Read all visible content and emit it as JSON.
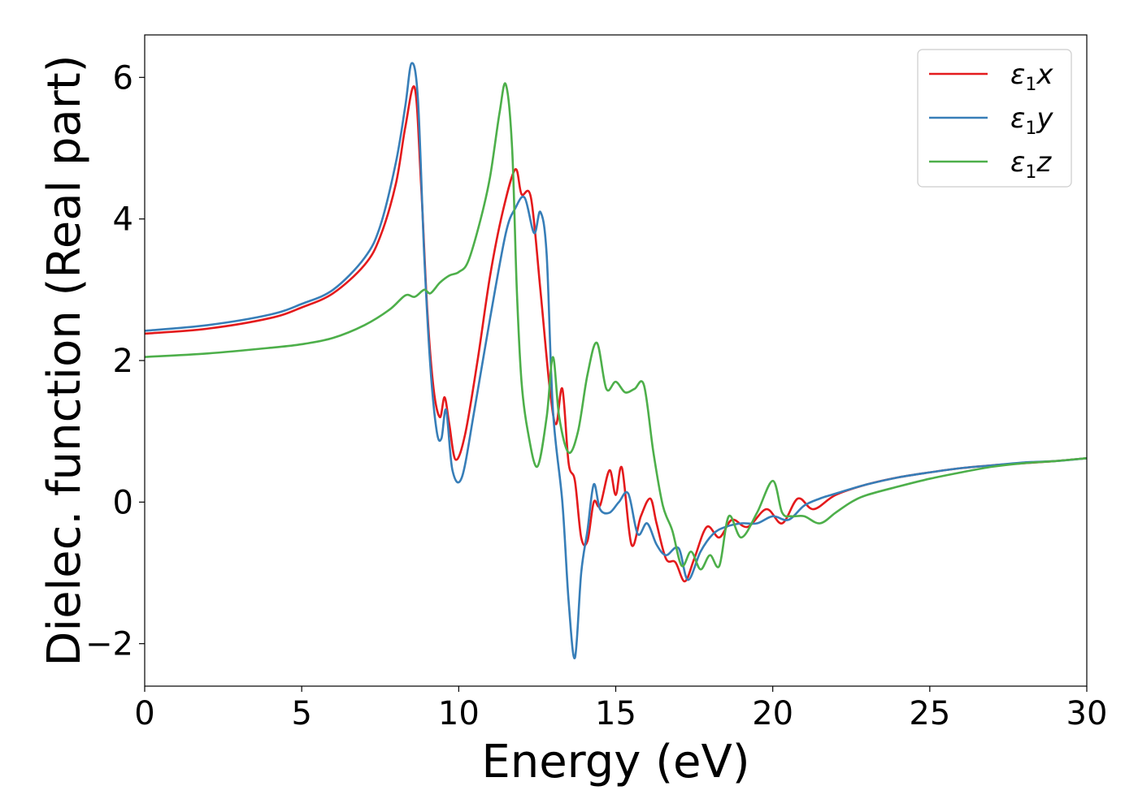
{
  "chart_data": {
    "type": "line",
    "title": "",
    "xlabel": "Energy (eV)",
    "ylabel": "Dielec. function (Real part)",
    "xlim": [
      0,
      30
    ],
    "ylim": [
      -2.6,
      6.6
    ],
    "xticks": [
      0,
      5,
      10,
      15,
      20,
      25,
      30
    ],
    "xtick_labels": [
      "0",
      "5",
      "10",
      "15",
      "20",
      "25",
      "30"
    ],
    "yticks": [
      -2,
      0,
      2,
      4,
      6
    ],
    "ytick_labels": [
      "−2",
      "0",
      "2",
      "4",
      "6"
    ],
    "grid": false,
    "legend_position": "top-right",
    "series": [
      {
        "name": "ε1x",
        "legend_main": "ε",
        "legend_sub": "1",
        "legend_var": "x",
        "color": "#e41a1c",
        "x": [
          0,
          2,
          4,
          5,
          6,
          7,
          7.5,
          8,
          8.3,
          8.6,
          8.8,
          9.0,
          9.2,
          9.4,
          9.55,
          9.7,
          9.9,
          10.2,
          10.6,
          11.0,
          11.4,
          11.8,
          12.0,
          12.3,
          12.6,
          12.9,
          13.1,
          13.3,
          13.5,
          13.7,
          13.9,
          14.1,
          14.3,
          14.5,
          14.8,
          15.0,
          15.2,
          15.5,
          15.8,
          16.1,
          16.3,
          16.6,
          16.9,
          17.2,
          17.5,
          17.9,
          18.3,
          18.7,
          19.2,
          19.8,
          20.3,
          20.8,
          21.3,
          22,
          23,
          24,
          25,
          26,
          27,
          28,
          29,
          30
        ],
        "y": [
          2.38,
          2.45,
          2.6,
          2.75,
          2.95,
          3.35,
          3.75,
          4.5,
          5.3,
          5.85,
          4.5,
          2.7,
          1.6,
          1.2,
          1.48,
          1.1,
          0.6,
          0.95,
          2.0,
          3.2,
          4.1,
          4.7,
          4.35,
          4.3,
          3.0,
          1.6,
          1.1,
          1.6,
          0.55,
          0.3,
          -0.5,
          -0.55,
          0.0,
          -0.05,
          0.45,
          0.1,
          0.48,
          -0.6,
          -0.2,
          0.05,
          -0.3,
          -0.8,
          -0.85,
          -1.12,
          -0.8,
          -0.35,
          -0.5,
          -0.25,
          -0.35,
          -0.1,
          -0.3,
          0.05,
          -0.1,
          0.1,
          0.25,
          0.35,
          0.42,
          0.48,
          0.52,
          0.55,
          0.58,
          0.62
        ]
      },
      {
        "name": "ε1y",
        "legend_main": "ε",
        "legend_sub": "1",
        "legend_var": "y",
        "color": "#377eb8",
        "x": [
          0,
          2,
          4,
          5,
          6,
          7,
          7.5,
          8,
          8.3,
          8.5,
          8.7,
          8.9,
          9.1,
          9.3,
          9.45,
          9.6,
          9.8,
          10.1,
          10.5,
          11.0,
          11.5,
          11.8,
          12.1,
          12.4,
          12.6,
          12.8,
          13.0,
          13.3,
          13.5,
          13.7,
          13.9,
          14.1,
          14.3,
          14.5,
          14.8,
          15.1,
          15.4,
          15.7,
          16.0,
          16.3,
          16.6,
          17.0,
          17.3,
          17.7,
          18.1,
          18.5,
          19.0,
          19.5,
          20.0,
          20.5,
          21.0,
          21.5,
          22,
          23,
          24,
          25,
          26,
          27,
          28,
          29,
          30
        ],
        "y": [
          2.42,
          2.5,
          2.65,
          2.8,
          3.0,
          3.45,
          3.9,
          4.8,
          5.6,
          6.2,
          5.7,
          3.5,
          1.9,
          1.0,
          0.9,
          1.3,
          0.45,
          0.35,
          1.3,
          2.6,
          3.8,
          4.15,
          4.3,
          3.8,
          4.1,
          3.5,
          1.3,
          0.0,
          -1.4,
          -2.2,
          -1.0,
          -0.4,
          0.25,
          -0.1,
          -0.15,
          0.0,
          0.12,
          -0.45,
          -0.3,
          -0.6,
          -0.75,
          -0.65,
          -1.1,
          -0.7,
          -0.45,
          -0.35,
          -0.3,
          -0.3,
          -0.2,
          -0.25,
          -0.05,
          0.05,
          0.12,
          0.25,
          0.35,
          0.42,
          0.48,
          0.52,
          0.56,
          0.58,
          0.62
        ]
      },
      {
        "name": "ε1z",
        "legend_main": "ε",
        "legend_sub": "1",
        "legend_var": "z",
        "color": "#4daf4a",
        "x": [
          0,
          2,
          4,
          5,
          6,
          7,
          7.8,
          8.3,
          8.6,
          8.9,
          9.1,
          9.4,
          9.7,
          10.0,
          10.3,
          10.7,
          11.0,
          11.3,
          11.5,
          11.7,
          11.85,
          12.0,
          12.2,
          12.5,
          12.8,
          13.0,
          13.2,
          13.5,
          13.8,
          14.1,
          14.4,
          14.7,
          15.0,
          15.3,
          15.6,
          15.9,
          16.2,
          16.5,
          16.8,
          17.1,
          17.4,
          17.7,
          18.0,
          18.3,
          18.6,
          19.0,
          19.5,
          20.0,
          20.3,
          20.6,
          21.0,
          21.5,
          22,
          22.5,
          23,
          24,
          25,
          26,
          27,
          28,
          29,
          30
        ],
        "y": [
          2.05,
          2.1,
          2.18,
          2.23,
          2.32,
          2.5,
          2.72,
          2.92,
          2.9,
          3.0,
          2.95,
          3.1,
          3.2,
          3.25,
          3.4,
          4.0,
          4.6,
          5.5,
          5.9,
          5.0,
          3.0,
          1.7,
          1.0,
          0.5,
          1.2,
          2.05,
          1.2,
          0.7,
          1.0,
          1.8,
          2.25,
          1.6,
          1.7,
          1.55,
          1.6,
          1.65,
          0.7,
          -0.05,
          -0.4,
          -0.9,
          -0.7,
          -0.95,
          -0.75,
          -0.9,
          -0.2,
          -0.5,
          -0.15,
          0.3,
          -0.15,
          -0.2,
          -0.2,
          -0.3,
          -0.15,
          0.0,
          0.1,
          0.22,
          0.33,
          0.42,
          0.5,
          0.55,
          0.58,
          0.62
        ]
      }
    ]
  }
}
